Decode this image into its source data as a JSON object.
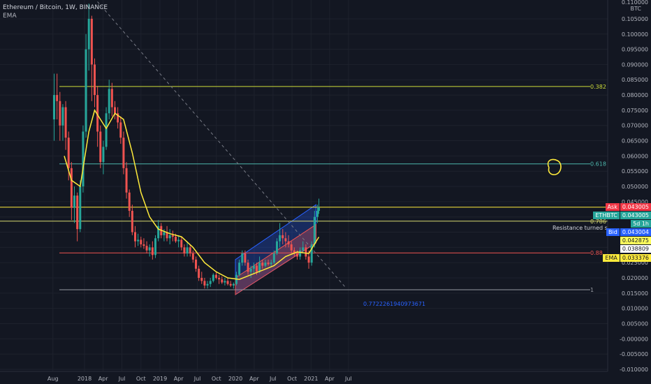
{
  "header": {
    "title": "Ethereum / Bitcoin, 1W, BINANCE",
    "indicator": "EMA"
  },
  "price_axis": {
    "currency": "BTC",
    "top_label": "0.110000",
    "labels": [
      "0.105000",
      "0.100000",
      "0.095000",
      "0.090000",
      "0.085000",
      "0.080000",
      "0.075000",
      "0.070000",
      "0.065000",
      "0.060000",
      "0.055000",
      "0.050000",
      "0.045000",
      "0.040000",
      "0.035000",
      "0.030000",
      "0.025000",
      "0.020000",
      "0.015000",
      "0.010000",
      "0.005000",
      "-0.000000",
      "-0.005000",
      "-0.010000"
    ]
  },
  "time_axis": {
    "labels": [
      "Aug",
      "2018",
      "Apr",
      "Jul",
      "Oct",
      "2019",
      "Apr",
      "Jul",
      "Oct",
      "2020",
      "Apr",
      "Jul",
      "Oct",
      "2021",
      "Apr",
      "Jul"
    ]
  },
  "price_tags": [
    {
      "label": "Ask",
      "value": "0.043005",
      "bg": "#f23645",
      "fg": "#ffffff"
    },
    {
      "label": "ETHBTC",
      "value": "0.043005",
      "bg": "#26a69a",
      "fg": "#ffffff"
    },
    {
      "label": "",
      "value": "5d 1h",
      "bg": "#26a69a",
      "fg": "#ffffff"
    },
    {
      "label": "Bid",
      "value": "0.043004",
      "bg": "#2962ff",
      "fg": "#ffffff"
    },
    {
      "label": "",
      "value": "0.042875",
      "bg": "#ffff5c",
      "fg": "#131722"
    },
    {
      "label": "",
      "value": "0.038809",
      "bg": "#ffffff",
      "fg": "#131722"
    },
    {
      "label": "EMA",
      "value": "0.033376",
      "bg": "#ffeb3b",
      "fg": "#131722"
    }
  ],
  "annotations": {
    "fib_0382": "0.382",
    "fib_0618": "0.618",
    "fib_0786": "0.786",
    "fib_088": "0.88",
    "fib_1": "1",
    "channel_ratio": "0.7722261940973671",
    "note": "Resistance turned support...?"
  },
  "colors": {
    "background": "#131722",
    "up": "#26a69a",
    "down": "#ef5350",
    "ema": "#ffeb3b",
    "fib_0382": "#cddc39",
    "fib_0618": "#4db6ac",
    "fib_0786": "#d7d86f",
    "fib_088": "#ef5350",
    "fib_1": "#9598a1",
    "resistance": "#ffeb3b",
    "channel_blue": "#2962ff",
    "channel_red": "#ef5350"
  },
  "chart_data": {
    "type": "candlestick",
    "symbol": "ETHBTC",
    "interval": "1W",
    "exchange": "BINANCE",
    "ylim": [
      -0.01,
      0.11
    ],
    "x_range": [
      "2017-07-10",
      "2021-08-20"
    ],
    "indicators": [
      "EMA"
    ],
    "horizontal_levels": [
      {
        "label": "0.382",
        "value": 0.0828
      },
      {
        "label": "0.618",
        "value": 0.0574
      },
      {
        "label": "0.786",
        "value": 0.0386
      },
      {
        "label": "0.88",
        "value": 0.0282
      },
      {
        "label": "1",
        "value": 0.0161
      },
      {
        "label": "",
        "value": 0.0432
      }
    ],
    "candles": [
      [
        "2017-08-07",
        0.072,
        0.087,
        0.065,
        0.08
      ],
      [
        "2017-08-21",
        0.08,
        0.087,
        0.072,
        0.078
      ],
      [
        "2017-09-04",
        0.078,
        0.081,
        0.065,
        0.07
      ],
      [
        "2017-09-18",
        0.07,
        0.077,
        0.065,
        0.076
      ],
      [
        "2017-10-02",
        0.076,
        0.078,
        0.062,
        0.066
      ],
      [
        "2017-10-16",
        0.066,
        0.068,
        0.052,
        0.056
      ],
      [
        "2017-10-30",
        0.056,
        0.058,
        0.039,
        0.043
      ],
      [
        "2017-11-13",
        0.043,
        0.05,
        0.038,
        0.047
      ],
      [
        "2017-11-27",
        0.047,
        0.048,
        0.032,
        0.036
      ],
      [
        "2017-12-11",
        0.036,
        0.052,
        0.035,
        0.05
      ],
      [
        "2017-12-25",
        0.05,
        0.07,
        0.048,
        0.068
      ],
      [
        "2018-01-08",
        0.068,
        0.1,
        0.066,
        0.095
      ],
      [
        "2018-01-22",
        0.095,
        0.11,
        0.088,
        0.105
      ],
      [
        "2018-02-05",
        0.105,
        0.106,
        0.078,
        0.09
      ],
      [
        "2018-02-19",
        0.09,
        0.092,
        0.076,
        0.08
      ],
      [
        "2018-03-05",
        0.08,
        0.083,
        0.063,
        0.068
      ],
      [
        "2018-03-19",
        0.068,
        0.07,
        0.056,
        0.058
      ],
      [
        "2018-04-02",
        0.058,
        0.065,
        0.054,
        0.063
      ],
      [
        "2018-04-16",
        0.063,
        0.076,
        0.062,
        0.074
      ],
      [
        "2018-04-30",
        0.074,
        0.085,
        0.072,
        0.082
      ],
      [
        "2018-05-14",
        0.082,
        0.084,
        0.073,
        0.076
      ],
      [
        "2018-05-28",
        0.076,
        0.078,
        0.072,
        0.074
      ],
      [
        "2018-06-11",
        0.074,
        0.076,
        0.069,
        0.071
      ],
      [
        "2018-06-25",
        0.071,
        0.073,
        0.064,
        0.066
      ],
      [
        "2018-07-09",
        0.066,
        0.068,
        0.054,
        0.056
      ],
      [
        "2018-07-23",
        0.056,
        0.058,
        0.046,
        0.048
      ],
      [
        "2018-08-06",
        0.048,
        0.049,
        0.04,
        0.042
      ],
      [
        "2018-08-20",
        0.042,
        0.044,
        0.034,
        0.035
      ],
      [
        "2018-09-03",
        0.035,
        0.037,
        0.03,
        0.032
      ],
      [
        "2018-09-17",
        0.032,
        0.0345,
        0.0305,
        0.0325
      ],
      [
        "2018-10-01",
        0.0325,
        0.0335,
        0.03,
        0.031
      ],
      [
        "2018-10-15",
        0.031,
        0.033,
        0.0295,
        0.0305
      ],
      [
        "2018-10-29",
        0.0305,
        0.032,
        0.028,
        0.029
      ],
      [
        "2018-11-12",
        0.029,
        0.031,
        0.027,
        0.03
      ],
      [
        "2018-11-26",
        0.03,
        0.032,
        0.026,
        0.0275
      ],
      [
        "2018-12-10",
        0.0275,
        0.034,
        0.0265,
        0.033
      ],
      [
        "2018-12-24",
        0.033,
        0.039,
        0.032,
        0.037
      ],
      [
        "2019-01-07",
        0.037,
        0.038,
        0.033,
        0.034
      ],
      [
        "2019-01-21",
        0.034,
        0.036,
        0.032,
        0.035
      ],
      [
        "2019-02-04",
        0.035,
        0.037,
        0.032,
        0.033
      ],
      [
        "2019-02-18",
        0.033,
        0.036,
        0.031,
        0.034
      ],
      [
        "2019-03-04",
        0.034,
        0.0355,
        0.032,
        0.0335
      ],
      [
        "2019-03-18",
        0.0335,
        0.0345,
        0.0315,
        0.032
      ],
      [
        "2019-04-01",
        0.032,
        0.034,
        0.03,
        0.0325
      ],
      [
        "2019-04-15",
        0.0325,
        0.0335,
        0.029,
        0.03
      ],
      [
        "2019-04-29",
        0.03,
        0.031,
        0.027,
        0.028
      ],
      [
        "2019-05-13",
        0.028,
        0.032,
        0.027,
        0.03
      ],
      [
        "2019-05-27",
        0.03,
        0.031,
        0.027,
        0.028
      ],
      [
        "2019-06-10",
        0.028,
        0.029,
        0.025,
        0.026
      ],
      [
        "2019-06-24",
        0.026,
        0.027,
        0.022,
        0.023
      ],
      [
        "2019-07-08",
        0.023,
        0.024,
        0.019,
        0.02
      ],
      [
        "2019-07-22",
        0.02,
        0.022,
        0.018,
        0.019
      ],
      [
        "2019-08-05",
        0.019,
        0.02,
        0.0165,
        0.0175
      ],
      [
        "2019-08-19",
        0.0175,
        0.019,
        0.0165,
        0.018
      ],
      [
        "2019-09-02",
        0.018,
        0.02,
        0.017,
        0.019
      ],
      [
        "2019-09-16",
        0.019,
        0.0215,
        0.0185,
        0.021
      ],
      [
        "2019-09-30",
        0.021,
        0.022,
        0.0195,
        0.02
      ],
      [
        "2019-10-14",
        0.02,
        0.021,
        0.018,
        0.0195
      ],
      [
        "2019-10-28",
        0.0195,
        0.0205,
        0.018,
        0.0185
      ],
      [
        "2019-11-11",
        0.0185,
        0.02,
        0.0175,
        0.019
      ],
      [
        "2019-11-25",
        0.019,
        0.02,
        0.0175,
        0.018
      ],
      [
        "2019-12-09",
        0.018,
        0.019,
        0.017,
        0.0175
      ],
      [
        "2019-12-23",
        0.0175,
        0.0185,
        0.0165,
        0.018
      ],
      [
        "2020-01-06",
        0.018,
        0.022,
        0.0175,
        0.021
      ],
      [
        "2020-01-20",
        0.021,
        0.026,
        0.0205,
        0.025
      ],
      [
        "2020-02-03",
        0.025,
        0.029,
        0.024,
        0.028
      ],
      [
        "2020-02-17",
        0.028,
        0.029,
        0.024,
        0.025
      ],
      [
        "2020-03-02",
        0.025,
        0.026,
        0.021,
        0.022
      ],
      [
        "2020-03-16",
        0.022,
        0.024,
        0.02,
        0.023
      ],
      [
        "2020-03-30",
        0.023,
        0.025,
        0.0215,
        0.024
      ],
      [
        "2020-04-13",
        0.024,
        0.025,
        0.021,
        0.022
      ],
      [
        "2020-04-27",
        0.022,
        0.027,
        0.0215,
        0.025
      ],
      [
        "2020-05-11",
        0.025,
        0.026,
        0.023,
        0.024
      ],
      [
        "2020-05-25",
        0.024,
        0.026,
        0.0235,
        0.025
      ],
      [
        "2020-06-08",
        0.025,
        0.026,
        0.024,
        0.0245
      ],
      [
        "2020-06-22",
        0.0245,
        0.026,
        0.0235,
        0.025
      ],
      [
        "2020-07-06",
        0.025,
        0.029,
        0.0245,
        0.028
      ],
      [
        "2020-07-20",
        0.028,
        0.033,
        0.0275,
        0.032
      ],
      [
        "2020-08-03",
        0.032,
        0.038,
        0.03,
        0.034
      ],
      [
        "2020-08-17",
        0.034,
        0.036,
        0.031,
        0.033
      ],
      [
        "2020-08-31",
        0.033,
        0.035,
        0.03,
        0.032
      ],
      [
        "2020-09-14",
        0.032,
        0.034,
        0.03,
        0.031
      ],
      [
        "2020-09-28",
        0.031,
        0.032,
        0.028,
        0.029
      ],
      [
        "2020-10-12",
        0.029,
        0.03,
        0.027,
        0.028
      ],
      [
        "2020-10-26",
        0.028,
        0.029,
        0.026,
        0.027
      ],
      [
        "2020-11-09",
        0.027,
        0.03,
        0.026,
        0.029
      ],
      [
        "2020-11-23",
        0.029,
        0.032,
        0.028,
        0.03
      ],
      [
        "2020-12-07",
        0.03,
        0.031,
        0.026,
        0.027
      ],
      [
        "2020-12-21",
        0.027,
        0.029,
        0.023,
        0.025
      ],
      [
        "2021-01-04",
        0.025,
        0.032,
        0.024,
        0.031
      ],
      [
        "2021-01-18",
        0.031,
        0.042,
        0.03,
        0.04
      ],
      [
        "2021-02-01",
        0.04,
        0.044,
        0.038,
        0.042
      ],
      [
        "2021-02-08",
        0.042,
        0.046,
        0.041,
        0.043
      ]
    ],
    "ema": [
      [
        "2017-09-25",
        0.06
      ],
      [
        "2017-10-30",
        0.052
      ],
      [
        "2017-12-11",
        0.05
      ],
      [
        "2018-01-22",
        0.068
      ],
      [
        "2018-02-19",
        0.075
      ],
      [
        "2018-03-19",
        0.072
      ],
      [
        "2018-04-16",
        0.069
      ],
      [
        "2018-05-28",
        0.074
      ],
      [
        "2018-07-09",
        0.072
      ],
      [
        "2018-08-20",
        0.061
      ],
      [
        "2018-10-01",
        0.048
      ],
      [
        "2018-11-12",
        0.04
      ],
      [
        "2018-12-24",
        0.036
      ],
      [
        "2019-02-18",
        0.0345
      ],
      [
        "2019-04-15",
        0.0335
      ],
      [
        "2019-06-10",
        0.03
      ],
      [
        "2019-08-05",
        0.025
      ],
      [
        "2019-09-30",
        0.022
      ],
      [
        "2019-11-25",
        0.02
      ],
      [
        "2020-01-20",
        0.0195
      ],
      [
        "2020-03-16",
        0.021
      ],
      [
        "2020-05-11",
        0.0225
      ],
      [
        "2020-07-06",
        0.024
      ],
      [
        "2020-08-31",
        0.027
      ],
      [
        "2020-10-26",
        0.0285
      ],
      [
        "2020-12-21",
        0.028
      ],
      [
        "2021-02-08",
        0.0334
      ]
    ],
    "trendline_dashed": [
      [
        "2018-02-15",
        0.112
      ],
      [
        "2021-06-15",
        0.017
      ]
    ],
    "channel_blue": {
      "upper": [
        [
          "2020-01-01",
          0.026
        ],
        [
          "2021-01-25",
          0.044
        ]
      ],
      "lower": [
        [
          "2020-01-01",
          0.0145
        ],
        [
          "2021-01-25",
          0.0315
        ]
      ]
    },
    "channel_red": {
      "upper": [
        [
          "2020-01-01",
          0.02
        ],
        [
          "2021-01-25",
          0.0375
        ]
      ],
      "lower": [
        [
          "2020-01-01",
          0.0145
        ],
        [
          "2021-01-25",
          0.0315
        ]
      ]
    }
  }
}
